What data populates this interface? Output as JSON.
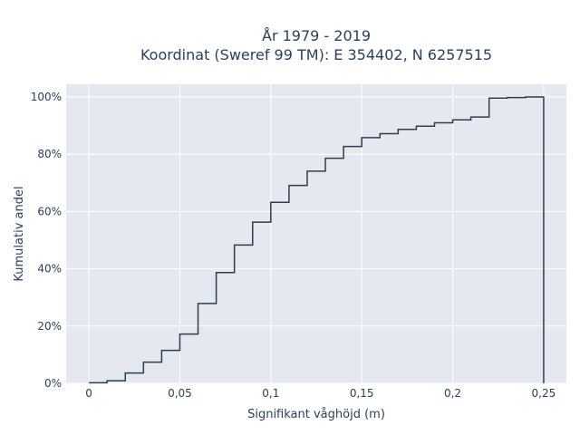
{
  "chart_data": {
    "type": "line",
    "line_shape": "step",
    "title": "År 1979 - 2019",
    "subtitle": "Koordinat (Sweref 99 TM): E 354402, N 6257515",
    "xlabel": "Signifikant våghöjd (m)",
    "ylabel": "Kumulativ andel",
    "xlim": [
      -0.0125,
      0.2625
    ],
    "ylim": [
      0,
      1.0
    ],
    "x_ticks": [
      0,
      0.05,
      0.1,
      0.15,
      0.2,
      0.25
    ],
    "x_tick_labels": [
      "0",
      "0,05",
      "0,1",
      "0,15",
      "0,2",
      "0,25"
    ],
    "y_ticks": [
      0,
      0.2,
      0.4,
      0.6,
      0.8,
      1.0
    ],
    "y_tick_labels": [
      "0%",
      "20%",
      "40%",
      "60%",
      "80%",
      "100%"
    ],
    "grid": true,
    "colors": {
      "plot_bg": "#e5e8f1",
      "grid": "#ffffff",
      "line": "#2f3e4e"
    },
    "series": [
      {
        "x": [
          0,
          0.01,
          0.02,
          0.03,
          0.04,
          0.05,
          0.06,
          0.07,
          0.08,
          0.09,
          0.1,
          0.11,
          0.12,
          0.13,
          0.14,
          0.15,
          0.16,
          0.17,
          0.18,
          0.19,
          0.2,
          0.21,
          0.22,
          0.23,
          0.24
        ],
        "y": [
          0.002,
          0.009,
          0.036,
          0.074,
          0.115,
          0.172,
          0.279,
          0.387,
          0.483,
          0.563,
          0.632,
          0.691,
          0.741,
          0.786,
          0.827,
          0.858,
          0.872,
          0.887,
          0.898,
          0.91,
          0.92,
          0.93,
          0.996,
          0.998,
          1.0
        ]
      }
    ]
  }
}
